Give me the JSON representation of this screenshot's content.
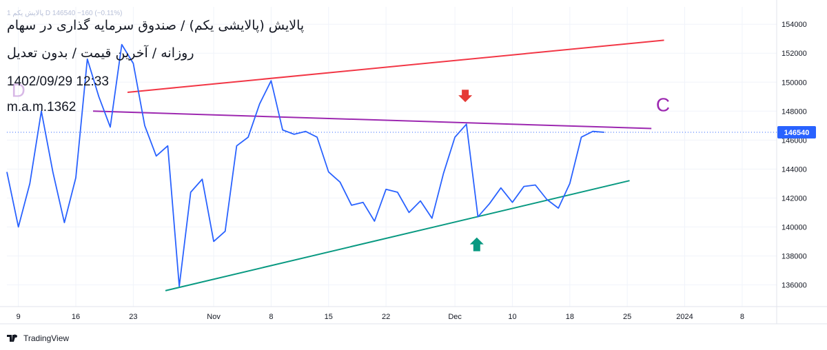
{
  "legend_line": "پالایش یکم 1 D  146540  −160 (−0.11%)",
  "overlay": {
    "title": "پالایش (پالایشی یکم) / صندوق سرمایه گذاری در سهام",
    "subtitle": "روزانه / آخرین قیمت / بدون تعدیل",
    "datetime": "1402/09/29 12:33",
    "author": "m.a.m.1362"
  },
  "brand": {
    "label": "TradingView",
    "icon": "tradingview-logo-icon"
  },
  "chart_data": {
    "type": "line",
    "last_price": 146540,
    "last_price_label": "146540",
    "ylim": [
      134500,
      155200
    ],
    "y_ticks": [
      136000,
      138000,
      140000,
      142000,
      144000,
      146000,
      148000,
      150000,
      152000,
      154000
    ],
    "x_ticks": [
      {
        "label": "9",
        "i": 1
      },
      {
        "label": "16",
        "i": 6
      },
      {
        "label": "23",
        "i": 11
      },
      {
        "label": "Nov",
        "i": 18
      },
      {
        "label": "8",
        "i": 23
      },
      {
        "label": "15",
        "i": 28
      },
      {
        "label": "22",
        "i": 33
      },
      {
        "label": "Dec",
        "i": 39
      },
      {
        "label": "10",
        "i": 44
      },
      {
        "label": "18",
        "i": 49
      },
      {
        "label": "25",
        "i": 54
      },
      {
        "label": "2024",
        "i": 59
      },
      {
        "label": "8",
        "i": 64
      }
    ],
    "grid": true,
    "colors": {
      "price": "#2962ff",
      "upper": "#f23645",
      "middle": "#9c27b0",
      "lower": "#089981",
      "grid": "#f0f3fa",
      "axis_text": "#131722",
      "price_badge": "#2962ff"
    },
    "series": [
      {
        "values": [
          143800,
          140000,
          143000,
          148000,
          143800,
          140300,
          143400,
          151600,
          149000,
          146900,
          152600,
          151300,
          147000,
          144900,
          145600,
          135900,
          142400,
          143300,
          139000,
          139700,
          145600,
          146200,
          148500,
          150100,
          146700,
          146400,
          146600,
          146200,
          143800,
          143100,
          141500,
          141700,
          140400,
          142600,
          142400,
          141000,
          141800,
          140600,
          143700,
          146200,
          147100,
          140700,
          141600,
          142700,
          141700,
          142800,
          142900,
          141900,
          141300,
          143000,
          146200,
          146600,
          146540
        ]
      }
    ],
    "trendlines": [
      {
        "name": "upper",
        "points": [
          [
            10.5,
            149300
          ],
          [
            57.2,
            152900
          ]
        ]
      },
      {
        "name": "middle",
        "points": [
          [
            7.5,
            148000
          ],
          [
            56.1,
            146800
          ]
        ]
      },
      {
        "name": "lower",
        "points": [
          [
            13.8,
            135600
          ],
          [
            54.2,
            143200
          ]
        ]
      }
    ],
    "annotations": [
      {
        "type": "arrow-down",
        "color": "#e53935",
        "i": 39.9,
        "y": 149000,
        "name": "down-arrow-marker"
      },
      {
        "type": "arrow-up",
        "color": "#089981",
        "i": 40.9,
        "y": 138800,
        "name": "up-arrow-marker"
      },
      {
        "type": "text",
        "text": "C",
        "color": "#9c27b0",
        "i": 56.5,
        "y": 148000,
        "name": "label-c"
      },
      {
        "type": "text",
        "text": "D",
        "color": "#d7b8e6",
        "i": 0.4,
        "y": 149000,
        "name": "label-d"
      }
    ]
  }
}
